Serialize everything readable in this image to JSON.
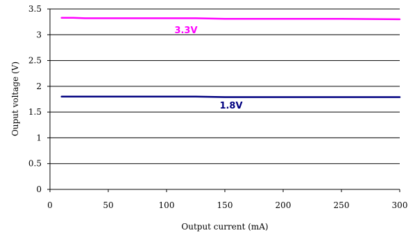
{
  "chart_data": {
    "type": "line",
    "title": "",
    "xlabel": "Output current (mA)",
    "ylabel": "Ouput voltage (V)",
    "xlim": [
      0,
      300
    ],
    "ylim": [
      0,
      3.5
    ],
    "xticks": [
      0,
      50,
      100,
      150,
      200,
      250,
      300
    ],
    "yticks": [
      0,
      0.5,
      1,
      1.5,
      2,
      2.5,
      3,
      3.5
    ],
    "ytick_labels": [
      "0",
      "0.5",
      "1",
      "1.5",
      "2",
      "2.5",
      "3",
      "3.5"
    ],
    "grid": "horizontal",
    "legend": "none",
    "series": [
      {
        "name": "3.3V",
        "color": "#ff00ff",
        "x": [
          10,
          20,
          30,
          50,
          100,
          125,
          150,
          200,
          250,
          300
        ],
        "y": [
          3.33,
          3.33,
          3.32,
          3.32,
          3.32,
          3.32,
          3.31,
          3.31,
          3.31,
          3.3
        ]
      },
      {
        "name": "1.8V",
        "color": "#000080",
        "x": [
          10,
          50,
          100,
          125,
          150,
          200,
          250,
          300
        ],
        "y": [
          1.8,
          1.8,
          1.8,
          1.8,
          1.79,
          1.79,
          1.79,
          1.79
        ]
      }
    ]
  }
}
